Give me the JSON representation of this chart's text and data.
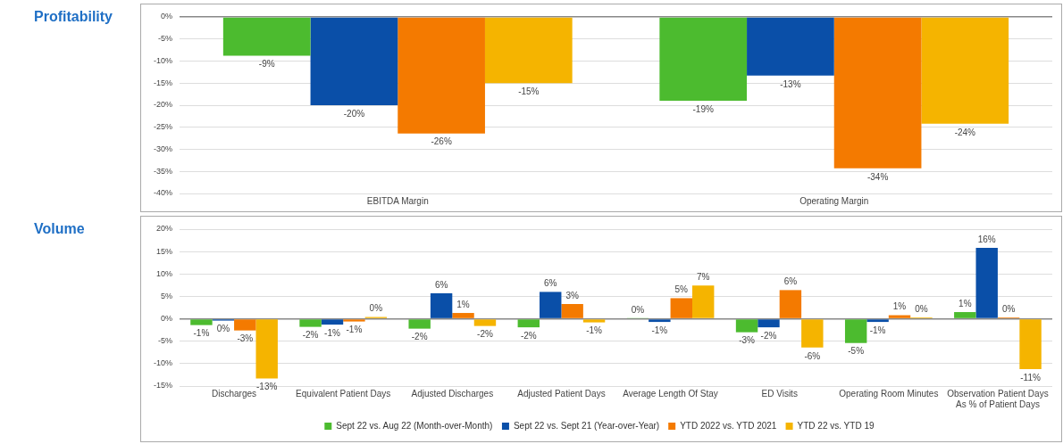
{
  "chart_data": [
    {
      "type": "bar",
      "title": "Profitability",
      "categories": [
        "EBITDA Margin",
        "Operating Margin"
      ],
      "series": [
        {
          "color": "#4cbb2f",
          "values": [
            -8.8,
            -19
          ],
          "value_labels": [
            "-9%",
            "-19%"
          ]
        },
        {
          "color": "#0a4fa8",
          "values": [
            -20,
            -13.3
          ],
          "value_labels": [
            "-20%",
            "-13%"
          ]
        },
        {
          "color": "#f47a00",
          "values": [
            -26.4,
            -34.3
          ],
          "value_labels": [
            "-26%",
            "-34%"
          ]
        },
        {
          "color": "#f5b400",
          "values": [
            -15,
            -24.2
          ],
          "value_labels": [
            "-15%",
            "-24%"
          ]
        }
      ],
      "ylim": [
        -40,
        0
      ],
      "yticks": [
        {
          "value": -40,
          "label": "-40%"
        },
        {
          "value": -35,
          "label": "-35%"
        },
        {
          "value": -30,
          "label": "-30%"
        },
        {
          "value": -25,
          "label": "-25%"
        },
        {
          "value": -20,
          "label": "-20%"
        },
        {
          "value": -15,
          "label": "-15%"
        },
        {
          "value": -10,
          "label": "-10%"
        },
        {
          "value": -5,
          "label": "-5%"
        },
        {
          "value": 0,
          "label": "0%"
        }
      ],
      "grid": "y",
      "legend": false
    },
    {
      "type": "bar",
      "title": "Volume",
      "categories": [
        "Discharges",
        "Equivalent Patient Days",
        "Adjusted Discharges",
        "Adjusted Patient Days",
        "Average Length Of Stay",
        "ED Visits",
        "Operating Room Minutes",
        "Observation Patient Days\nAs % of Patient Days"
      ],
      "series": [
        {
          "name": "Sept 22 vs. Aug 22 (Month-over-Month)",
          "color": "#4cbb2f",
          "values": [
            -1.4,
            -1.8,
            -2.2,
            -1.9,
            0.1,
            -3,
            -5.4,
            1.5
          ],
          "value_labels": [
            "-1%",
            "-2%",
            "-2%",
            "-2%",
            "0%",
            "-3%",
            "-5%",
            "1%"
          ]
        },
        {
          "name": "Sept 22 vs. Sept 21 (Year-over-Year)",
          "color": "#0a4fa8",
          "values": [
            -0.4,
            -1.3,
            5.7,
            6,
            -0.7,
            -1.9,
            -0.7,
            15.8
          ],
          "value_labels": [
            "0%",
            "-1%",
            "6%",
            "6%",
            "-1%",
            "-2%",
            "-1%",
            "16%"
          ]
        },
        {
          "name": "YTD 2022 vs. YTD 2021",
          "color": "#f47a00",
          "values": [
            -2.6,
            -0.6,
            1.3,
            3.3,
            4.6,
            6.4,
            0.8,
            0.3
          ],
          "value_labels": [
            "-3%",
            "-1%",
            "1%",
            "3%",
            "5%",
            "6%",
            "1%",
            "0%"
          ]
        },
        {
          "name": "YTD 22 vs. YTD 19",
          "color": "#f5b400",
          "values": [
            -13.3,
            0.4,
            -1.6,
            -0.8,
            7.4,
            -6.4,
            0.3,
            -11.2
          ],
          "value_labels": [
            "-13%",
            "0%",
            "-2%",
            "-1%",
            "7%",
            "-6%",
            "0%",
            "-11%"
          ]
        }
      ],
      "ylim": [
        -15,
        20
      ],
      "yticks": [
        {
          "value": -15,
          "label": "-15%"
        },
        {
          "value": -10,
          "label": "-10%"
        },
        {
          "value": -5,
          "label": "-5%"
        },
        {
          "value": 0,
          "label": "0%"
        },
        {
          "value": 5,
          "label": "5%"
        },
        {
          "value": 10,
          "label": "10%"
        },
        {
          "value": 15,
          "label": "15%"
        },
        {
          "value": 20,
          "label": "20%"
        }
      ],
      "grid": "y",
      "legend": "bottom"
    }
  ]
}
